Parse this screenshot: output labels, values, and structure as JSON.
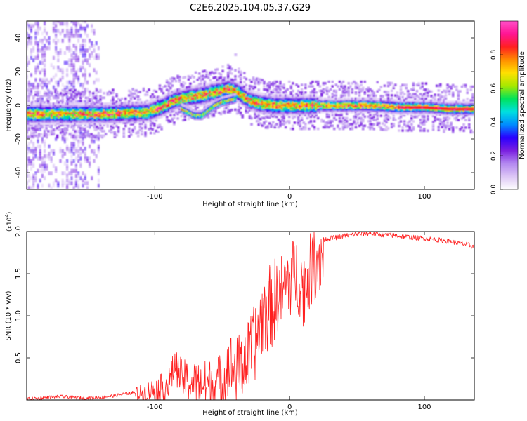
{
  "title": "C2E6.2025.104.05.37.G29",
  "colorbar": {
    "label": "Normalized spectral amplitude",
    "range": [
      0,
      1
    ],
    "ticks": [
      "0.0",
      "0.2",
      "0.4",
      "0.6",
      "0.8"
    ],
    "tick_values": [
      0,
      0.2,
      0.4,
      0.6,
      0.8
    ],
    "colormap": [
      "#ffffff",
      "#dcc6f5",
      "#b388f0",
      "#7a1fe0",
      "#2a00ff",
      "#008cff",
      "#00e0e0",
      "#00e35a",
      "#a8e800",
      "#ffe000",
      "#ff8c00",
      "#ff2020",
      "#ff1493",
      "#ff4fc8"
    ]
  },
  "chart_data": [
    {
      "type": "heatmap",
      "title": "C2E6.2025.104.05.37.G29",
      "xlabel": "Height of straight line (km)",
      "ylabel": "Frequency (Hz)",
      "xlim": [
        -195,
        137
      ],
      "ylim": [
        -50,
        50
      ],
      "xticks": [
        -100,
        0,
        100
      ],
      "xtick_labels": [
        "-100",
        "0",
        "100"
      ],
      "yticks": [
        -40,
        -20,
        0,
        20,
        40
      ],
      "ytick_labels": [
        "-40",
        "-20",
        "0",
        "20",
        "40"
      ],
      "ridge": {
        "x": [
          -195,
          -180,
          -160,
          -140,
          -120,
          -105,
          -95,
          -85,
          -75,
          -65,
          -55,
          -45,
          -38,
          -30,
          -20,
          -10,
          0,
          10,
          20,
          40,
          60,
          80,
          100,
          120,
          137
        ],
        "y": [
          -5,
          -5,
          -5,
          -5,
          -4.5,
          -4,
          -1,
          3,
          5,
          6,
          8,
          10,
          8,
          3,
          1,
          0,
          0,
          0,
          0,
          0,
          0,
          -1,
          -1,
          -2,
          -2
        ]
      },
      "secondary_track": {
        "x": [
          -80,
          -75,
          -70,
          -65,
          -60,
          -55,
          -50,
          -45,
          -40
        ],
        "y": [
          -2,
          -4,
          -6,
          -6,
          -3,
          0,
          2,
          3,
          4
        ]
      },
      "clutter_region_x": [
        -195,
        -140
      ],
      "grid": false
    },
    {
      "type": "line",
      "xlabel": "Height of straight line (km)",
      "ylabel": "SNR (10 * v/v)",
      "multiplier_label": "(x10",
      "multiplier_exponent": "4",
      "xlim": [
        -195,
        137
      ],
      "ylim": [
        0,
        2.0
      ],
      "xticks": [
        -100,
        0,
        100
      ],
      "xtick_labels": [
        "-100",
        "0",
        "100"
      ],
      "yticks": [
        0.5,
        1.0,
        1.5,
        2.0
      ],
      "ytick_labels": [
        "0.5",
        "1.0",
        "1.5",
        "2.0"
      ],
      "color": "#ff2020",
      "series": [
        {
          "x": [
            -195,
            -180,
            -170,
            -160,
            -150,
            -140,
            -130,
            -120,
            -110,
            -100,
            -90,
            -85,
            -80,
            -70,
            -60,
            -50,
            -45,
            -40,
            -30,
            -25,
            -20,
            -15,
            -10,
            -5,
            0,
            5,
            10,
            15,
            20,
            25,
            30,
            35,
            40,
            50,
            60,
            70,
            80,
            90,
            100,
            110,
            120,
            130,
            137
          ],
          "y": [
            0.01,
            0.03,
            0.04,
            0.03,
            0.02,
            0.03,
            0.05,
            0.08,
            0.12,
            0.18,
            0.25,
            0.5,
            0.35,
            0.3,
            0.3,
            0.35,
            0.6,
            0.5,
            0.7,
            0.9,
            1.2,
            1.3,
            1.4,
            1.5,
            1.6,
            1.7,
            1.5,
            1.7,
            1.85,
            1.9,
            1.92,
            1.93,
            1.95,
            1.97,
            1.98,
            1.96,
            1.95,
            1.93,
            1.92,
            1.9,
            1.88,
            1.85,
            1.82
          ]
        }
      ],
      "grid": false
    }
  ]
}
